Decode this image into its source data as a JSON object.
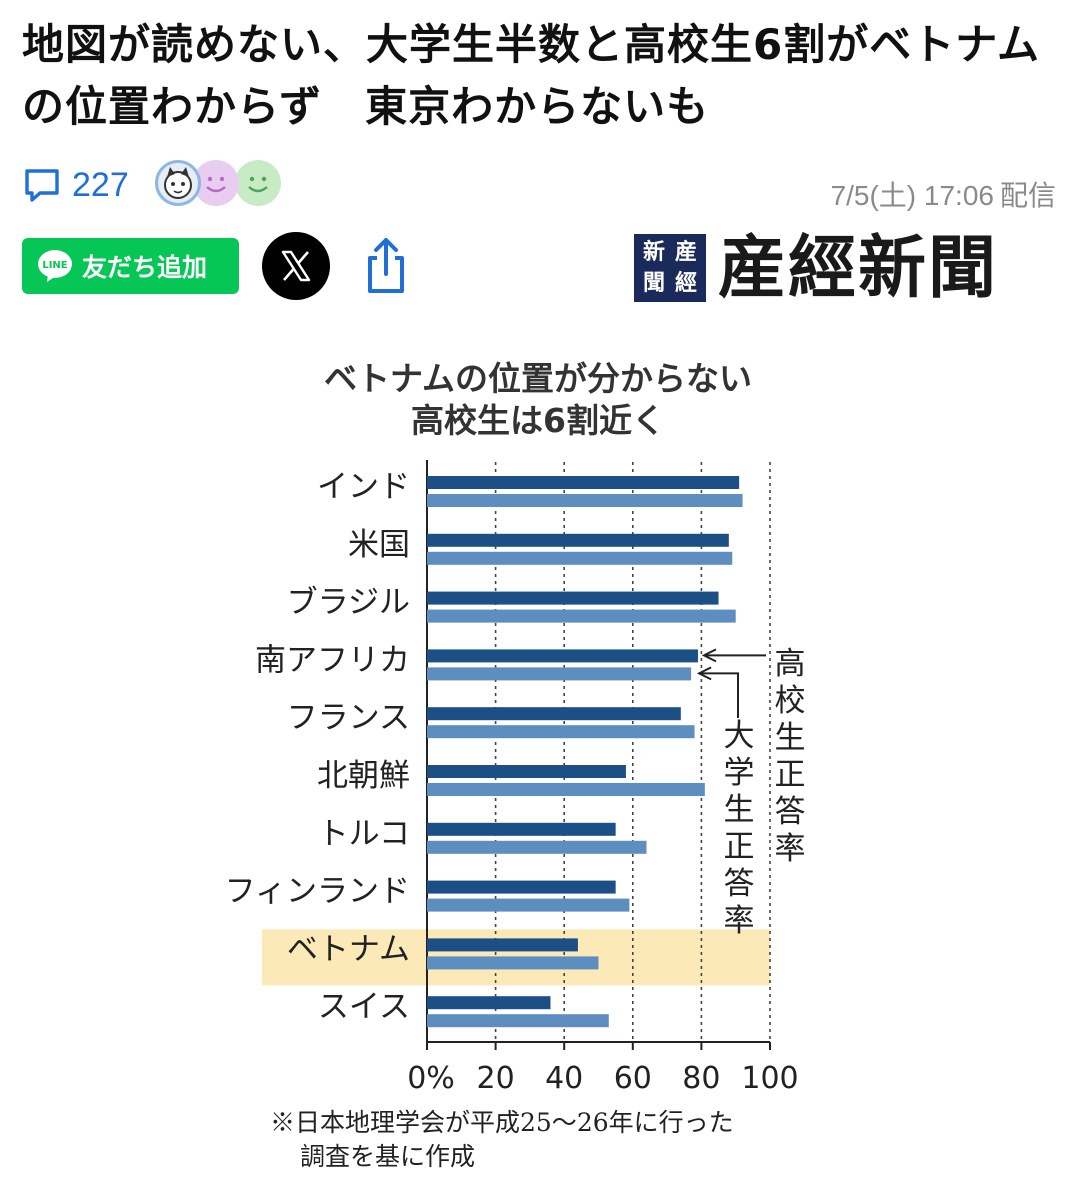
{
  "article": {
    "headline": "地図が読めない、大学生半数と高校生6割がベトナムの位置わからず　東京わからないも",
    "comment_count": "227",
    "timestamp": "7/5(土) 17:06",
    "timestamp_suffix": "配信"
  },
  "share": {
    "line_label": "友だち追加",
    "line_icon_text": "LINE",
    "x_icon": "x-logo-icon",
    "share_icon": "share-icon"
  },
  "publisher": {
    "name": "産經新聞",
    "seal_chars": [
      "産",
      "新",
      "經",
      "聞"
    ]
  },
  "chart_data": {
    "type": "bar",
    "title": "ベトナムの位置が分からない",
    "subtitle": "高校生は6割近く",
    "categories": [
      "インド",
      "米国",
      "ブラジル",
      "南アフリカ",
      "フランス",
      "北朝鮮",
      "トルコ",
      "フィンランド",
      "ベトナム",
      "スイス"
    ],
    "series": [
      {
        "name": "高校生正答率",
        "color": "#1b4f86",
        "values": [
          91,
          88,
          85,
          79,
          74,
          58,
          55,
          55,
          44,
          36
        ]
      },
      {
        "name": "大学生正答率",
        "color": "#5e8dc0",
        "values": [
          92,
          89,
          90,
          77,
          78,
          81,
          64,
          59,
          50,
          53
        ]
      }
    ],
    "highlight": "ベトナム",
    "highlight_color": "#fce9b8",
    "xlim": [
      0,
      100
    ],
    "x_ticks": [
      "0%",
      "20",
      "40",
      "60",
      "80",
      "100"
    ],
    "x_tick_values": [
      0,
      20,
      40,
      60,
      80,
      100
    ],
    "grid": "dotted vertical",
    "annotation_high_school": "高校生正答率",
    "annotation_university": "大学生正答率",
    "note_lines": [
      "※日本地理学会が平成25〜26年に行った",
      "調査を基に作成"
    ]
  },
  "colors": {
    "accent": "#1f6fd6",
    "line_green": "#06c755"
  }
}
